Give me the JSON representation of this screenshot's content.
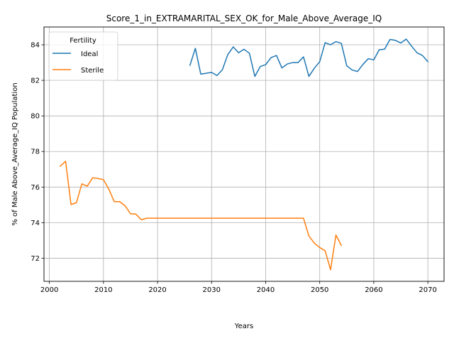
{
  "chart_data": {
    "type": "line",
    "title": "Score_1_in_EXTRAMARITAL_SEX_OK_for_Male_Above_Average_IQ",
    "xlabel": "Years",
    "ylabel": "% of Male Above_Average_IQ Population",
    "xlim": [
      1999,
      2073
    ],
    "ylim": [
      70.7,
      85.0
    ],
    "xticks": [
      2000,
      2010,
      2020,
      2030,
      2040,
      2050,
      2060,
      2070
    ],
    "yticks": [
      72,
      74,
      76,
      78,
      80,
      82,
      84
    ],
    "grid": true,
    "legend": {
      "title": "Fertility",
      "placement": "top-left"
    },
    "series": [
      {
        "name": "Ideal",
        "color": "#1f77b4",
        "x": [
          2026,
          2027,
          2028,
          2029,
          2030,
          2031,
          2032,
          2033,
          2034,
          2035,
          2036,
          2037,
          2038,
          2039,
          2040,
          2041,
          2042,
          2043,
          2044,
          2045,
          2046,
          2047,
          2048,
          2049,
          2050,
          2051,
          2052,
          2053,
          2054,
          2055,
          2056,
          2057,
          2058,
          2059,
          2060,
          2061,
          2062,
          2063,
          2064,
          2065,
          2066,
          2067,
          2068,
          2069,
          2070
        ],
        "y": [
          82.85,
          83.8,
          82.35,
          82.4,
          82.45,
          82.27,
          82.6,
          83.45,
          83.88,
          83.55,
          83.75,
          83.52,
          82.22,
          82.78,
          82.88,
          83.28,
          83.4,
          82.7,
          82.92,
          83.0,
          83.0,
          83.32,
          82.22,
          82.68,
          83.05,
          84.12,
          84.0,
          84.18,
          84.08,
          82.82,
          82.58,
          82.5,
          82.9,
          83.22,
          83.15,
          83.72,
          83.75,
          84.3,
          84.25,
          84.1,
          84.32,
          83.92,
          83.55,
          83.4,
          83.05
        ]
      },
      {
        "name": "Sterile",
        "color": "#ff7f0e",
        "x": [
          2002,
          2003,
          2004,
          2005,
          2006,
          2007,
          2008,
          2009,
          2010,
          2011,
          2012,
          2013,
          2014,
          2015,
          2016,
          2017,
          2018,
          2019,
          2020,
          2021,
          2022,
          2023,
          2024,
          2025,
          2026,
          2027,
          2028,
          2029,
          2030,
          2031,
          2032,
          2033,
          2034,
          2035,
          2036,
          2037,
          2038,
          2039,
          2040,
          2041,
          2042,
          2043,
          2044,
          2045,
          2046,
          2047,
          2048,
          2049,
          2050,
          2051,
          2052,
          2053,
          2054
        ],
        "y": [
          77.18,
          77.45,
          75.02,
          75.12,
          76.18,
          76.05,
          76.52,
          76.48,
          76.42,
          75.88,
          75.18,
          75.18,
          74.95,
          74.5,
          74.48,
          74.16,
          74.25,
          74.25,
          74.25,
          74.25,
          74.25,
          74.25,
          74.25,
          74.25,
          74.25,
          74.25,
          74.25,
          74.25,
          74.25,
          74.25,
          74.25,
          74.25,
          74.25,
          74.25,
          74.25,
          74.25,
          74.25,
          74.25,
          74.25,
          74.25,
          74.25,
          74.25,
          74.25,
          74.25,
          74.25,
          74.25,
          73.25,
          72.85,
          72.6,
          72.42,
          71.35,
          73.3,
          72.72
        ]
      }
    ]
  }
}
